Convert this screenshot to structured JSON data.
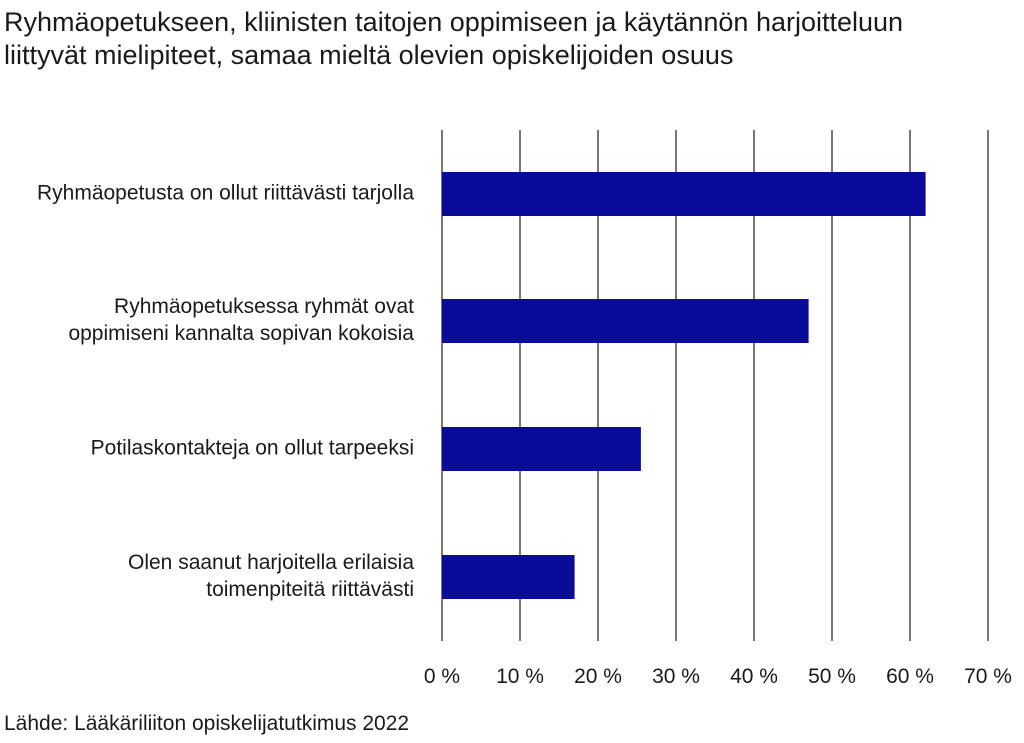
{
  "title_lines": [
    "Ryhmäopetukseen, kliinisten taitojen oppimiseen ja käytännön harjoitteluun",
    "liittyvät mielipiteet, samaa mieltä olevien opiskelijoiden osuus"
  ],
  "source": "Lähde: Lääkäriliiton opiskelijatutkimus 2022",
  "chart_data": {
    "type": "bar",
    "orientation": "horizontal",
    "title": "Ryhmäopetukseen, kliinisten taitojen oppimiseen ja käytännön harjoitteluun liittyvät mielipiteet, samaa mieltä olevien opiskelijoiden osuus",
    "categories": [
      [
        "Ryhmäopetusta on ollut riittävästi tarjolla"
      ],
      [
        "Ryhmäopetuksessa ryhmät ovat",
        "oppimiseni kannalta sopivan kokoisia"
      ],
      [
        "Potilaskontakteja on ollut tarpeeksi"
      ],
      [
        "Olen saanut harjoitella erilaisia",
        "toimenpiteitä riittävästi"
      ]
    ],
    "values": [
      62,
      47,
      25.5,
      17
    ],
    "xlim": [
      0,
      70
    ],
    "ticks": [
      0,
      10,
      20,
      30,
      40,
      50,
      60,
      70
    ],
    "tick_labels": [
      "0 %",
      "10 %",
      "20 %",
      "30 %",
      "40 %",
      "50 %",
      "60 %",
      "70 %"
    ],
    "grid": "vertical",
    "legend": "none",
    "bar_color": "#0b0b9a",
    "grid_color": "#555555"
  }
}
